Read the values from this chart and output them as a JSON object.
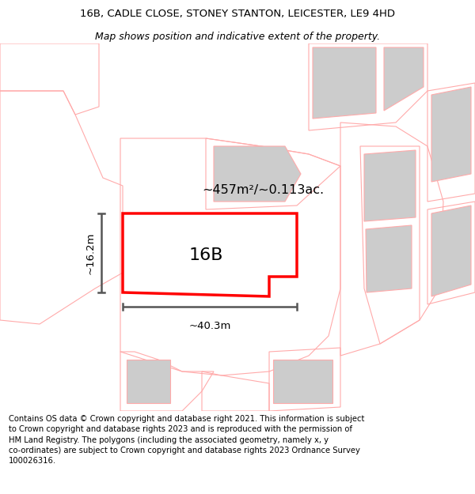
{
  "title_line1": "16B, CADLE CLOSE, STONEY STANTON, LEICESTER, LE9 4HD",
  "title_line2": "Map shows position and indicative extent of the property.",
  "footer_text": "Contains OS data © Crown copyright and database right 2021. This information is subject\nto Crown copyright and database rights 2023 and is reproduced with the permission of\nHM Land Registry. The polygons (including the associated geometry, namely x, y\nco-ordinates) are subject to Crown copyright and database rights 2023 Ordnance Survey\n100026316.",
  "area_label": "~457m²/~0.113ac.",
  "label_16B": "16B",
  "width_label": "~40.3m",
  "height_label": "~16.2m",
  "bg_color": "#ffffff",
  "map_bg": "#ffffff",
  "highlight_color": "#ff0000",
  "outline_color": "#ffaaaa",
  "building_fill": "#cccccc",
  "dim_line_color": "#555555",
  "title_fontsize": 9.5,
  "footer_fontsize": 7.2
}
